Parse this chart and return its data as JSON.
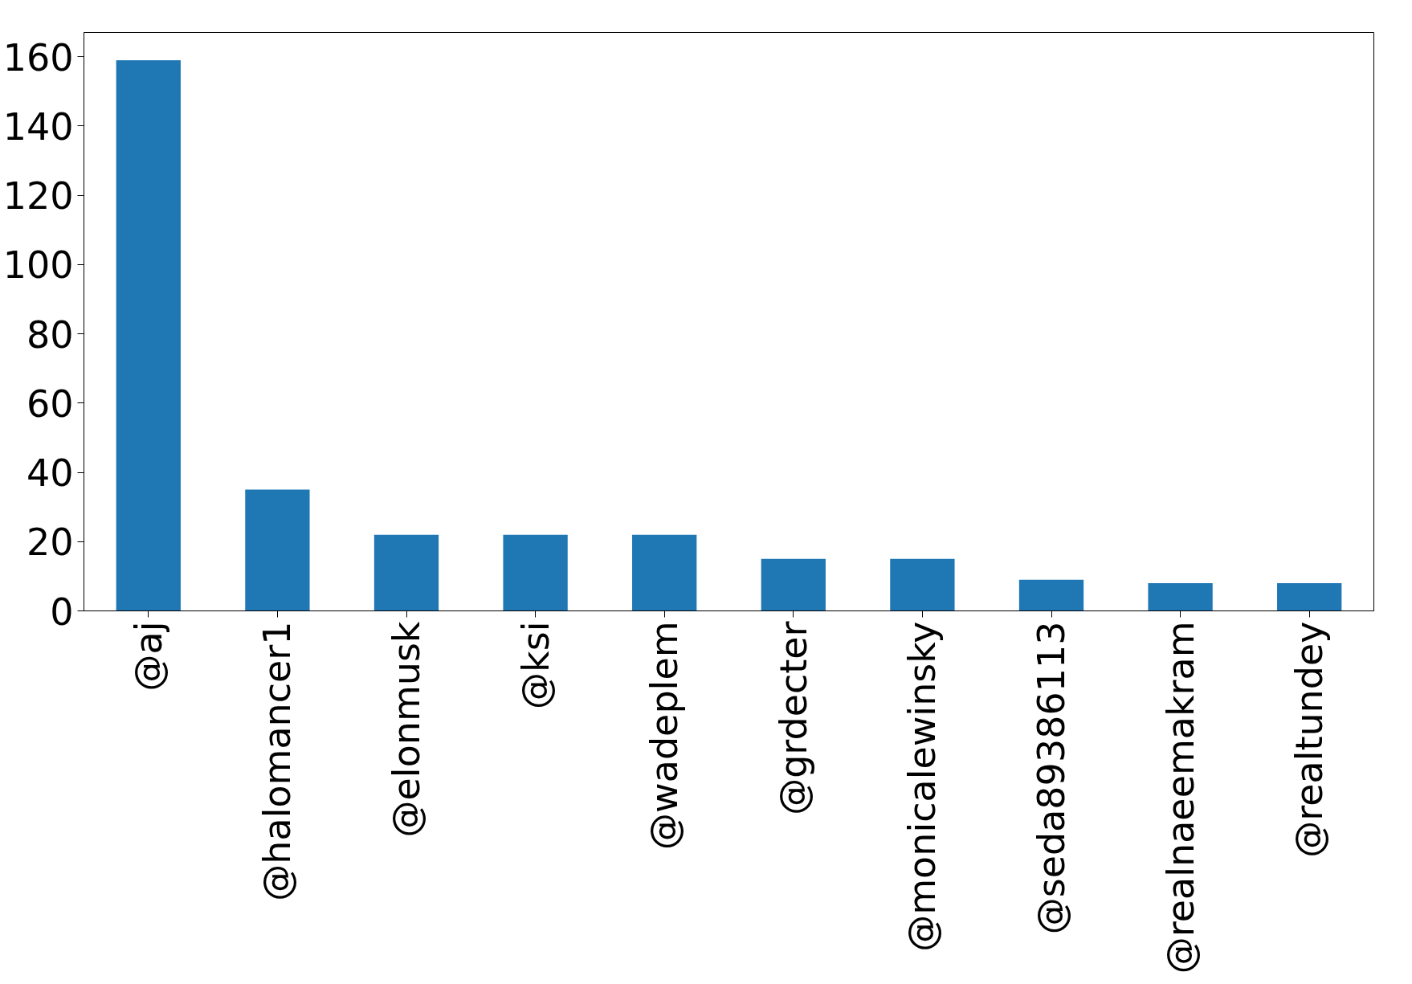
{
  "chart_data": {
    "type": "bar",
    "categories": [
      "@aj",
      "@halomancer1",
      "@elonmusk",
      "@ksi",
      "@wadeplem",
      "@grdecter",
      "@monicalewinsky",
      "@seda89386113",
      "@realnaeemakram",
      "@realtundey"
    ],
    "values": [
      159,
      35,
      22,
      22,
      22,
      15,
      15,
      9,
      8,
      8
    ],
    "color": "#1f77b4",
    "ylim": [
      0,
      167
    ],
    "yticks": [
      0,
      20,
      40,
      60,
      80,
      100,
      120,
      140,
      160
    ],
    "grid": false
  }
}
